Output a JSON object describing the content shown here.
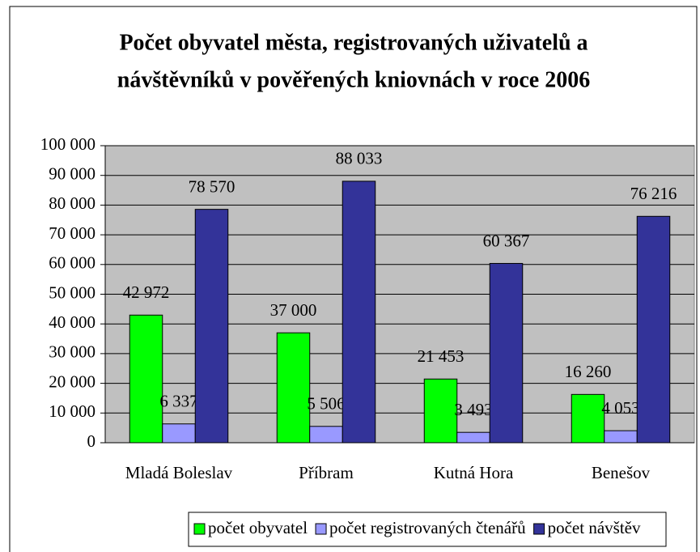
{
  "chart_data": {
    "type": "bar",
    "title": [
      "Počet obyvatel města, registrovaných uživatelů a",
      "návštěvníků v pověřených kniovnách v roce 2006"
    ],
    "categories": [
      "Mladá Boleslav",
      "Příbram",
      "Kutná Hora",
      "Benešov"
    ],
    "series": [
      {
        "name": "počet obyvatel",
        "color": "#00ff00",
        "values": [
          42972,
          37000,
          21453,
          16260
        ],
        "value_labels": [
          "42 972",
          "37 000",
          "21 453",
          "16 260"
        ]
      },
      {
        "name": "počet registrovaných čtenářů",
        "color": "#9999ff",
        "values": [
          6337,
          5506,
          3493,
          4053
        ],
        "value_labels": [
          "6 337",
          "5 506",
          "3 493",
          "4 053"
        ]
      },
      {
        "name": "počet návštěv",
        "color": "#333399",
        "values": [
          78570,
          88033,
          60367,
          76216
        ],
        "value_labels": [
          "78 570",
          "88 033",
          "60 367",
          "76 216"
        ]
      }
    ],
    "ylim": [
      0,
      100000
    ],
    "yticks": [
      0,
      {
        "value": 10000,
        "label": "10 000"
      },
      {
        "value": 20000,
        "label": "20 000"
      },
      {
        "value": 30000,
        "label": "30 000"
      },
      {
        "value": 40000,
        "label": "40 000"
      },
      {
        "value": 50000,
        "label": "50 000"
      },
      {
        "value": 60000,
        "label": "60 000"
      },
      {
        "value": 70000,
        "label": "70 000"
      },
      {
        "value": 80000,
        "label": "80 000"
      },
      {
        "value": 90000,
        "label": "90 000"
      },
      {
        "value": 100000,
        "label": "100 000"
      }
    ],
    "grid": true,
    "legend": "bottom"
  }
}
